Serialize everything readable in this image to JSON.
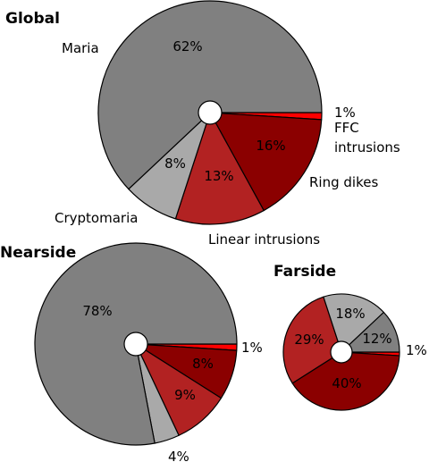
{
  "chart_data": [
    {
      "type": "pie",
      "title": "Global",
      "categories": [
        "FFC intrusions",
        "Ring dikes",
        "Linear intrusions",
        "Cryptomaria",
        "Maria"
      ],
      "values": [
        1,
        16,
        13,
        8,
        62
      ],
      "value_labels": [
        "1%",
        "16%",
        "13%",
        "8%",
        "62%"
      ],
      "category_labels": [
        "FFC\nintrusions",
        "Ring dikes",
        "Linear intrusions",
        "Cryptomaria",
        "Maria"
      ],
      "colors": [
        "#ff0000",
        "#8b0000",
        "#b22222",
        "#a9a9a9",
        "#808080"
      ],
      "start": "0° (3 o'clock), clockwise",
      "hole": true
    },
    {
      "type": "pie",
      "title": "Nearside",
      "categories": [
        "FFC intrusions",
        "Ring dikes",
        "Linear intrusions",
        "Cryptomaria",
        "Maria"
      ],
      "values": [
        1,
        8,
        9,
        4,
        78
      ],
      "value_labels": [
        "1%",
        "8%",
        "9%",
        "4%",
        "78%"
      ],
      "colors": [
        "#ff0000",
        "#8b0000",
        "#b22222",
        "#a9a9a9",
        "#808080"
      ],
      "start": "0° (3 o'clock), clockwise",
      "hole": true
    },
    {
      "type": "pie",
      "title": "Farside",
      "categories": [
        "FFC intrusions",
        "Ring dikes",
        "Linear intrusions",
        "Cryptomaria",
        "Maria"
      ],
      "values": [
        1,
        40,
        29,
        18,
        12
      ],
      "value_labels": [
        "1%",
        "40%",
        "29%",
        "18%",
        "12%"
      ],
      "colors": [
        "#ff0000",
        "#8b0000",
        "#b22222",
        "#a9a9a9",
        "#808080"
      ],
      "start": "0° (3 o'clock), clockwise",
      "hole": true
    }
  ]
}
